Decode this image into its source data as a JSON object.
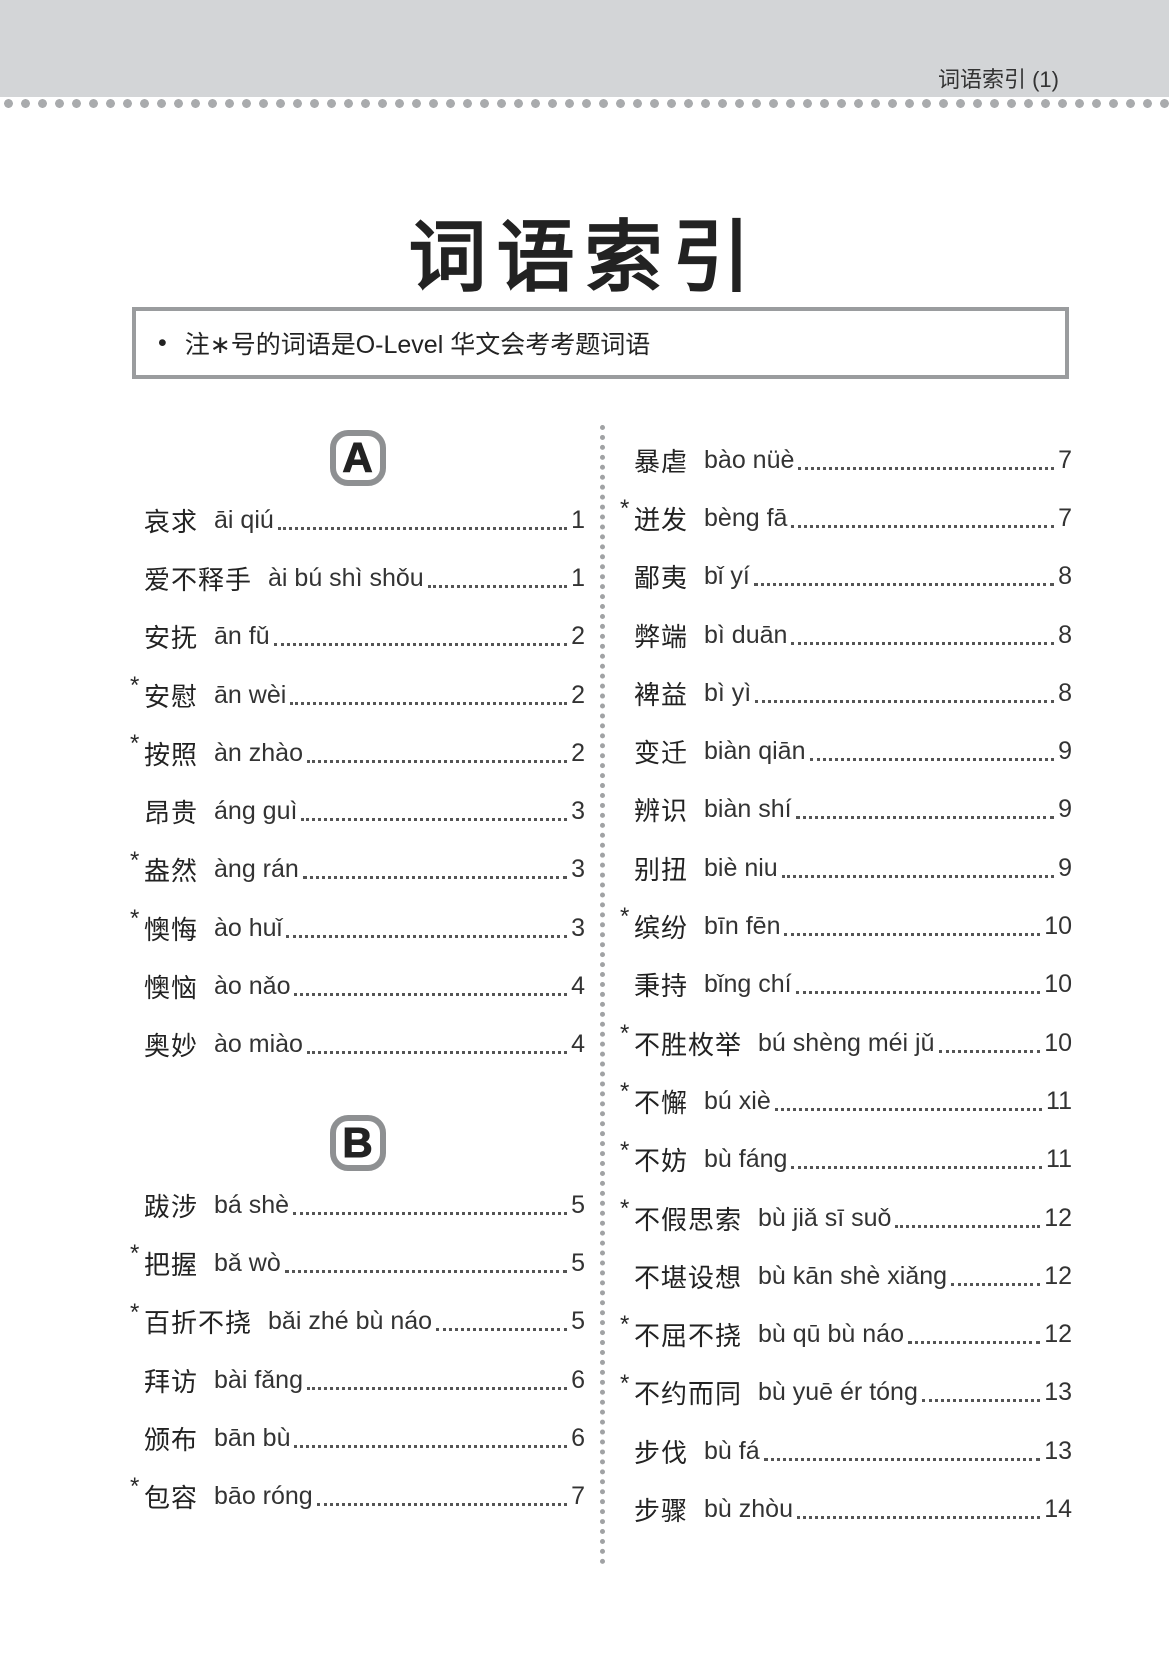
{
  "header": {
    "running_title": "词语索引 (1)"
  },
  "title": "词语索引",
  "note": {
    "bullet": "•",
    "text": "注∗号的词语是O-Level 华文会考考题词语"
  },
  "sections": {
    "A": {
      "letter": "A",
      "entries": [
        {
          "star": "",
          "word": "哀求",
          "pinyin": "āi qiú",
          "page": "1"
        },
        {
          "star": "",
          "word": "爱不释手",
          "pinyin": "ài bú shì shǒu",
          "page": "1"
        },
        {
          "star": "",
          "word": "安抚",
          "pinyin": "ān fǔ",
          "page": "2"
        },
        {
          "star": "*",
          "word": "安慰",
          "pinyin": "ān wèi",
          "page": "2"
        },
        {
          "star": "*",
          "word": "按照",
          "pinyin": "àn zhào",
          "page": "2"
        },
        {
          "star": "",
          "word": "昂贵",
          "pinyin": "áng guì",
          "page": "3"
        },
        {
          "star": "*",
          "word": "盎然",
          "pinyin": "àng rán",
          "page": "3"
        },
        {
          "star": "*",
          "word": "懊悔",
          "pinyin": "ào huǐ",
          "page": "3"
        },
        {
          "star": "",
          "word": "懊恼",
          "pinyin": "ào nǎo",
          "page": "4"
        },
        {
          "star": "",
          "word": "奥妙",
          "pinyin": "ào miào",
          "page": "4"
        }
      ]
    },
    "B": {
      "letter": "B",
      "entries": [
        {
          "star": "",
          "word": "跋涉",
          "pinyin": "bá shè",
          "page": "5"
        },
        {
          "star": "*",
          "word": "把握",
          "pinyin": "bǎ wò",
          "page": "5"
        },
        {
          "star": "*",
          "word": "百折不挠",
          "pinyin": "bǎi zhé bù náo",
          "page": "5"
        },
        {
          "star": "",
          "word": "拜访",
          "pinyin": "bài fǎng",
          "page": "6"
        },
        {
          "star": "",
          "word": "颁布",
          "pinyin": "bān bù",
          "page": "6"
        },
        {
          "star": "*",
          "word": "包容",
          "pinyin": "bāo róng",
          "page": "7"
        },
        {
          "star": "",
          "word": "暴虐",
          "pinyin": "bào nüè",
          "page": "7"
        },
        {
          "star": "*",
          "word": "迸发",
          "pinyin": "bèng fā",
          "page": "7"
        },
        {
          "star": "",
          "word": "鄙夷",
          "pinyin": "bǐ yí",
          "page": "8"
        },
        {
          "star": "",
          "word": "弊端",
          "pinyin": "bì duān",
          "page": "8"
        },
        {
          "star": "",
          "word": "裨益",
          "pinyin": "bì yì",
          "page": "8"
        },
        {
          "star": "",
          "word": "变迁",
          "pinyin": "biàn qiān",
          "page": "9"
        },
        {
          "star": "",
          "word": "辨识",
          "pinyin": "biàn shí",
          "page": "9"
        },
        {
          "star": "",
          "word": "别扭",
          "pinyin": "biè niu",
          "page": "9"
        },
        {
          "star": "*",
          "word": "缤纷",
          "pinyin": "bīn fēn",
          "page": "10"
        },
        {
          "star": "",
          "word": "秉持",
          "pinyin": "bǐng chí",
          "page": "10"
        },
        {
          "star": "*",
          "word": "不胜枚举",
          "pinyin": "bú shèng méi jǔ",
          "page": "10"
        },
        {
          "star": "*",
          "word": "不懈",
          "pinyin": "bú xiè",
          "page": "11"
        },
        {
          "star": "*",
          "word": "不妨",
          "pinyin": "bù fáng",
          "page": "11"
        },
        {
          "star": "*",
          "word": "不假思索",
          "pinyin": "bù jiǎ sī suǒ",
          "page": "12"
        },
        {
          "star": "",
          "word": "不堪设想",
          "pinyin": "bù kān shè xiǎng",
          "page": "12"
        },
        {
          "star": "*",
          "word": "不屈不挠",
          "pinyin": "bù qū bù náo",
          "page": "12"
        },
        {
          "star": "*",
          "word": "不约而同",
          "pinyin": "bù yuē ér tóng",
          "page": "13"
        },
        {
          "star": "",
          "word": "步伐",
          "pinyin": "bù fá",
          "page": "13"
        },
        {
          "star": "",
          "word": "步骤",
          "pinyin": "bù zhòu",
          "page": "14"
        }
      ]
    }
  }
}
